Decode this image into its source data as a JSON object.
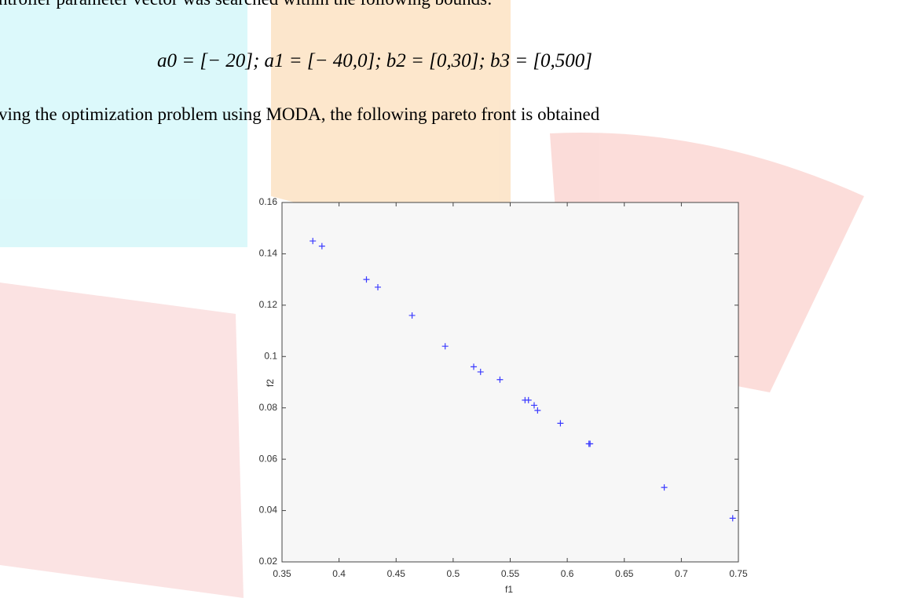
{
  "text": {
    "line1": "ntroller parameter vector was searched within the following bounds:",
    "equation": "a0 = [− 20]; a1 = [− 40,0]; b2 = [0,30]; b3 = [0,500]",
    "line2": "ving the optimization problem using MODA, the following pareto front is obtained"
  },
  "chart_data": {
    "type": "scatter",
    "xlabel": "f1",
    "ylabel": "f2",
    "color": "#3b3bff",
    "x": [
      0.377,
      0.385,
      0.424,
      0.434,
      0.464,
      0.493,
      0.518,
      0.524,
      0.541,
      0.563,
      0.566,
      0.571,
      0.574,
      0.594,
      0.619,
      0.62,
      0.685,
      0.745
    ],
    "values": [
      0.145,
      0.143,
      0.13,
      0.127,
      0.116,
      0.104,
      0.096,
      0.094,
      0.091,
      0.083,
      0.083,
      0.081,
      0.079,
      0.074,
      0.066,
      0.066,
      0.049,
      0.037
    ],
    "xlim": [
      0.35,
      0.75
    ],
    "xticks": [
      0.35,
      0.4,
      0.45,
      0.5,
      0.55,
      0.6,
      0.65,
      0.7,
      0.75
    ],
    "ylim": [
      0.02,
      0.16
    ],
    "yticks": [
      0.02,
      0.04,
      0.06,
      0.08,
      0.1,
      0.12,
      0.14,
      0.16
    ]
  }
}
